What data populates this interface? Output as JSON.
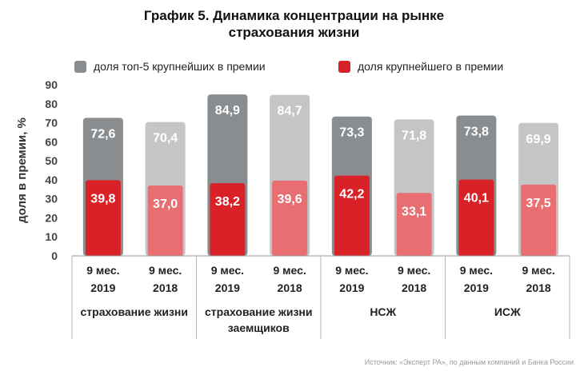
{
  "title_line1": "График 5. Динамика концентрации на рынке",
  "title_line2": "страхования жизни",
  "legend": {
    "top5": "доля топ-5 крупнейших в премии",
    "top1": "доля крупнейшего в премии"
  },
  "source": "Источник: «Эксперт РА», по данным компаний и Банка России",
  "colors": {
    "top5_2019": "#8a8d90",
    "top5_2018": "#c4c5c7",
    "top1_2019": "#d92128",
    "top1_2018": "#e86e72"
  },
  "chart_data": {
    "type": "bar",
    "title": "График 5. Динамика концентрации на рынке страхования жизни",
    "ylabel": "доля в премии, %",
    "ylim": [
      0,
      90
    ],
    "yticks": [
      "0",
      "10",
      "20",
      "30",
      "40",
      "50",
      "60",
      "70",
      "80",
      "90"
    ],
    "groups": [
      {
        "name": "страхование жизни",
        "name_lines": [
          "страхование жизни"
        ],
        "bars": [
          {
            "line1": "9 мес.",
            "line2": "2019",
            "year": "2019",
            "top5": 72.6,
            "top5_label": "72,6",
            "top1": 39.8,
            "top1_label": "39,8"
          },
          {
            "line1": "9 мес.",
            "line2": "2018",
            "year": "2018",
            "top5": 70.4,
            "top5_label": "70,4",
            "top1": 37.0,
            "top1_label": "37,0"
          }
        ]
      },
      {
        "name": "страхование жизни заемщиков",
        "name_lines": [
          "страхование жизни",
          "заемщиков"
        ],
        "bars": [
          {
            "line1": "9 мес.",
            "line2": "2019",
            "year": "2019",
            "top5": 84.9,
            "top5_label": "84,9",
            "top1": 38.2,
            "top1_label": "38,2"
          },
          {
            "line1": "9 мес.",
            "line2": "2018",
            "year": "2018",
            "top5": 84.7,
            "top5_label": "84,7",
            "top1": 39.6,
            "top1_label": "39,6"
          }
        ]
      },
      {
        "name": "НСЖ",
        "name_lines": [
          "НСЖ"
        ],
        "bars": [
          {
            "line1": "9 мес.",
            "line2": "2019",
            "year": "2019",
            "top5": 73.3,
            "top5_label": "73,3",
            "top1": 42.2,
            "top1_label": "42,2"
          },
          {
            "line1": "9 мес.",
            "line2": "2018",
            "year": "2018",
            "top5": 71.8,
            "top5_label": "71,8",
            "top1": 33.1,
            "top1_label": "33,1"
          }
        ]
      },
      {
        "name": "ИСЖ",
        "name_lines": [
          "ИСЖ"
        ],
        "bars": [
          {
            "line1": "9 мес.",
            "line2": "2019",
            "year": "2019",
            "top5": 73.8,
            "top5_label": "73,8",
            "top1": 40.1,
            "top1_label": "40,1"
          },
          {
            "line1": "9 мес.",
            "line2": "2018",
            "year": "2018",
            "top5": 69.9,
            "top5_label": "69,9",
            "top1": 37.5,
            "top1_label": "37,5"
          }
        ]
      }
    ]
  }
}
